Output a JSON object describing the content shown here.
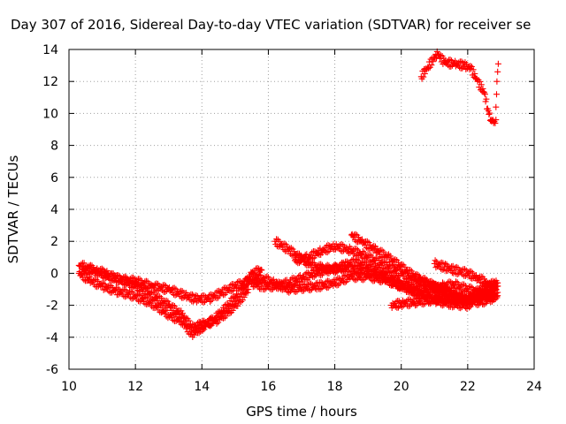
{
  "chart_data": {
    "type": "scatter",
    "title": "Day 307 of 2016, Sidereal Day-to-day VTEC variation (SDTVAR) for receiver se",
    "xlabel": "GPS time / hours",
    "ylabel": "SDTVAR / TECUs",
    "xlim": [
      10,
      24
    ],
    "ylim": [
      -6,
      14
    ],
    "x_ticks": [
      "10",
      "12",
      "14",
      "16",
      "18",
      "20",
      "22",
      "24"
    ],
    "y_ticks": [
      "-6",
      "-4",
      "-2",
      "0",
      "2",
      "4",
      "6",
      "8",
      "10",
      "12",
      "14"
    ],
    "grid": true,
    "marker": "+",
    "color": "#ff0000",
    "series": [
      {
        "x": [
          10.3,
          10.5,
          10.8,
          11.1,
          11.4,
          11.8,
          12.2,
          12.6,
          13.0,
          13.4,
          13.7,
          14.0,
          14.4,
          14.8,
          15.1,
          15.4
        ],
        "y": [
          0.5,
          0.4,
          0.2,
          0.0,
          -0.3,
          -0.6,
          -1.0,
          -1.5,
          -2.0,
          -2.6,
          -3.4,
          -3.2,
          -3.0,
          -2.4,
          -1.8,
          -1.0
        ]
      },
      {
        "x": [
          10.3,
          10.6,
          11.0,
          11.4,
          11.8,
          12.2,
          12.6,
          13.0,
          13.4,
          13.7,
          14.0,
          14.4,
          14.8,
          15.2,
          15.5,
          15.8
        ],
        "y": [
          0.0,
          -0.4,
          -0.8,
          -1.1,
          -1.3,
          -1.6,
          -2.0,
          -2.6,
          -3.0,
          -3.8,
          -3.4,
          -2.8,
          -2.0,
          -1.0,
          0.0,
          0.2
        ]
      },
      {
        "x": [
          10.4,
          10.8,
          11.2,
          11.6,
          12.0,
          12.5,
          13.0,
          13.5,
          13.8,
          14.2,
          14.6,
          15.0,
          15.4,
          15.8,
          16.2,
          16.6,
          17.0,
          17.5,
          18.0,
          18.5,
          19.0,
          19.5,
          20.0,
          20.5,
          21.0,
          21.5,
          22.0,
          22.5,
          22.9
        ],
        "y": [
          0.3,
          0.1,
          -0.2,
          -0.4,
          -0.5,
          -0.8,
          -1.0,
          -1.4,
          -1.6,
          -1.6,
          -1.2,
          -0.8,
          -0.5,
          -0.3,
          -0.6,
          -1.0,
          -0.9,
          -0.8,
          -0.6,
          -0.2,
          -0.2,
          -0.4,
          -0.8,
          -1.2,
          -1.4,
          -1.6,
          -1.6,
          -1.4,
          -1.2
        ]
      },
      {
        "x": [
          15.5,
          15.8,
          16.2,
          16.6,
          17.0,
          17.4,
          17.8,
          18.2,
          18.6,
          19.0,
          19.4,
          19.8,
          20.2,
          20.6,
          21.0,
          21.5,
          22.0,
          22.5,
          22.9
        ],
        "y": [
          -0.6,
          -0.8,
          -0.8,
          -0.6,
          -0.3,
          0.0,
          0.2,
          0.3,
          0.3,
          0.1,
          -0.2,
          -0.6,
          -1.0,
          -1.4,
          -1.7,
          -1.9,
          -2.0,
          -1.2,
          -0.6
        ]
      },
      {
        "x": [
          16.2,
          16.6,
          17.0,
          17.4,
          17.8,
          18.0,
          18.3,
          18.6,
          19.0,
          19.5,
          20.0,
          20.4,
          20.8,
          21.2,
          21.6,
          22.0,
          22.4,
          22.8
        ],
        "y": [
          2.0,
          1.5,
          0.9,
          0.4,
          0.3,
          0.3,
          0.5,
          0.7,
          0.4,
          0.0,
          -0.6,
          -0.9,
          -1.0,
          -0.8,
          -0.7,
          -1.0,
          -1.2,
          -1.3
        ]
      },
      {
        "x": [
          16.8,
          17.2,
          17.6,
          18.0,
          18.4,
          18.8,
          19.2,
          19.6,
          20.0,
          20.4,
          20.8,
          21.2,
          21.6,
          22.0,
          22.4,
          22.8
        ],
        "y": [
          0.8,
          1.0,
          1.4,
          1.7,
          1.5,
          1.2,
          0.8,
          0.4,
          0.0,
          -0.4,
          -0.7,
          -1.0,
          -1.4,
          -1.7,
          -1.8,
          -1.5
        ]
      },
      {
        "x": [
          18.5,
          18.8,
          19.2,
          19.6,
          20.0,
          20.4,
          20.8,
          21.2,
          21.6,
          22.0,
          22.4,
          22.9
        ],
        "y": [
          2.4,
          2.0,
          1.5,
          1.0,
          0.4,
          -0.2,
          -0.6,
          -1.0,
          -1.3,
          -1.6,
          -1.0,
          -0.8
        ]
      },
      {
        "x": [
          19.7,
          20.0,
          20.4,
          20.8,
          21.2,
          21.6,
          22.0,
          22.4,
          22.9
        ],
        "y": [
          -2.0,
          -1.9,
          -1.8,
          -1.7,
          -1.6,
          -1.6,
          -1.7,
          -1.5,
          -1.4
        ]
      },
      {
        "x": [
          21.0,
          21.3,
          21.6,
          22.0,
          22.3,
          22.6,
          22.9
        ],
        "y": [
          0.6,
          0.4,
          0.2,
          0.0,
          -0.3,
          -0.6,
          -0.8
        ]
      },
      {
        "x": [
          20.6,
          20.8,
          21.0,
          21.1,
          21.3,
          21.6,
          21.9,
          22.1,
          22.3,
          22.5,
          22.6,
          22.7,
          22.8,
          22.85
        ],
        "y": [
          12.3,
          12.9,
          13.5,
          13.7,
          13.2,
          13.1,
          13.0,
          12.8,
          12.0,
          11.3,
          10.3,
          9.6,
          9.5,
          9.6
        ]
      },
      {
        "x": [
          22.85,
          22.87,
          22.88,
          22.9,
          22.92
        ],
        "y": [
          10.4,
          11.2,
          12.0,
          12.6,
          13.1
        ]
      }
    ]
  }
}
